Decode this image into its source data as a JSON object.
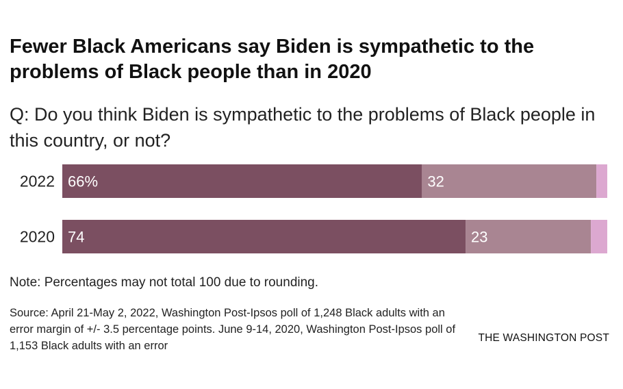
{
  "title": "Fewer Black Americans say Biden is sympathetic to the problems of Black people than in 2020",
  "subtitle": "Q: Do you think Biden is sympathetic to the problems of Black people in this country, or not?",
  "note": "Note: Percentages may not total 100 due to rounding.",
  "source": "Source: April 21-May 2, 2022, Washington Post-Ipsos poll of 1,248 Black adults with an error margin of +/- 3.5 percentage points. June 9-14, 2020, Washington Post-Ipsos poll of 1,153 Black adults with an error",
  "brand": "THE WASHINGTON POST",
  "colors": {
    "yes": "#7b4f61",
    "no": "#a98592",
    "other": "#dca8d0"
  },
  "chart_data": {
    "type": "bar",
    "orientation": "horizontal",
    "stacked": true,
    "categories": [
      "2022",
      "2020"
    ],
    "series": [
      {
        "values": [
          66,
          74
        ],
        "labels": [
          "66%",
          "74"
        ]
      },
      {
        "values": [
          32,
          23
        ],
        "labels": [
          "32",
          "23"
        ]
      },
      {
        "values": [
          2,
          3
        ],
        "labels": [
          "",
          ""
        ]
      }
    ],
    "xlim": [
      0,
      100
    ],
    "grid": false
  }
}
